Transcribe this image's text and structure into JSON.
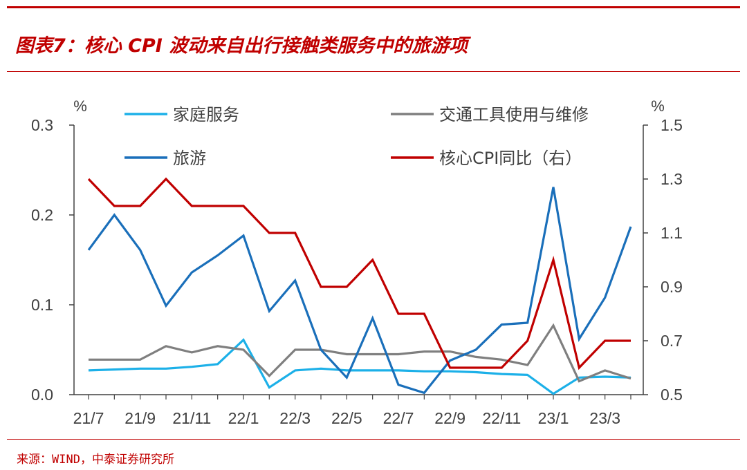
{
  "header": {
    "title": "图表7：核心 CPI 波动来自出行接触类服务中的旅游项"
  },
  "footer": {
    "source": "来源：WIND，中泰证券研究所"
  },
  "colors": {
    "accent": "#c00000"
  },
  "chart_data": {
    "type": "line",
    "x": [
      "21/7",
      "21/8",
      "21/9",
      "21/10",
      "21/11",
      "21/12",
      "22/1",
      "22/2",
      "22/3",
      "22/4",
      "22/5",
      "22/6",
      "22/7",
      "22/8",
      "22/9",
      "22/10",
      "22/11",
      "22/12",
      "23/1",
      "23/2",
      "23/3",
      "23/4"
    ],
    "x_tick_labels": [
      "21/7",
      "21/9",
      "21/11",
      "22/1",
      "22/3",
      "22/5",
      "22/7",
      "22/9",
      "22/11",
      "23/1",
      "23/3"
    ],
    "left_axis": {
      "unit": "%",
      "ylim": [
        0,
        0.3
      ],
      "ticks": [
        "0.0",
        "0.1",
        "0.2",
        "0.3"
      ]
    },
    "right_axis": {
      "unit": "%",
      "ylim": [
        0.5,
        1.5
      ],
      "ticks": [
        "0.5",
        "0.7",
        "0.9",
        "1.1",
        "1.3",
        "1.5"
      ]
    },
    "legend_placement": "top",
    "grid": false,
    "series": [
      {
        "name": "家庭服务",
        "axis": "left",
        "color": "#1cb0e8",
        "values": [
          0.027,
          0.028,
          0.029,
          0.029,
          0.031,
          0.034,
          0.061,
          0.008,
          0.027,
          0.029,
          0.027,
          0.027,
          0.027,
          0.026,
          0.026,
          0.025,
          0.023,
          0.022,
          0.001,
          0.019,
          0.02,
          0.019
        ]
      },
      {
        "name": "交通工具使用与维修",
        "axis": "left",
        "color": "#7f7f7f",
        "values": [
          0.039,
          0.039,
          0.039,
          0.054,
          0.047,
          0.054,
          0.05,
          0.021,
          0.05,
          0.05,
          0.045,
          0.045,
          0.045,
          0.048,
          0.048,
          0.042,
          0.039,
          0.033,
          0.077,
          0.015,
          0.027,
          0.018
        ]
      },
      {
        "name": "旅游",
        "axis": "left",
        "color": "#1a6fba",
        "values": [
          0.161,
          0.2,
          0.161,
          0.099,
          0.136,
          0.155,
          0.177,
          0.093,
          0.127,
          0.05,
          0.019,
          0.085,
          0.011,
          0.002,
          0.038,
          0.05,
          0.078,
          0.08,
          0.231,
          0.062,
          0.108,
          0.187
        ]
      },
      {
        "name": "核心CPI同比（右）",
        "axis": "right",
        "color": "#c00000",
        "values": [
          1.3,
          1.2,
          1.2,
          1.3,
          1.2,
          1.2,
          1.2,
          1.1,
          1.1,
          0.9,
          0.9,
          1.0,
          0.8,
          0.8,
          0.6,
          0.6,
          0.6,
          0.7,
          1.0,
          0.6,
          0.7,
          0.7
        ]
      }
    ]
  }
}
